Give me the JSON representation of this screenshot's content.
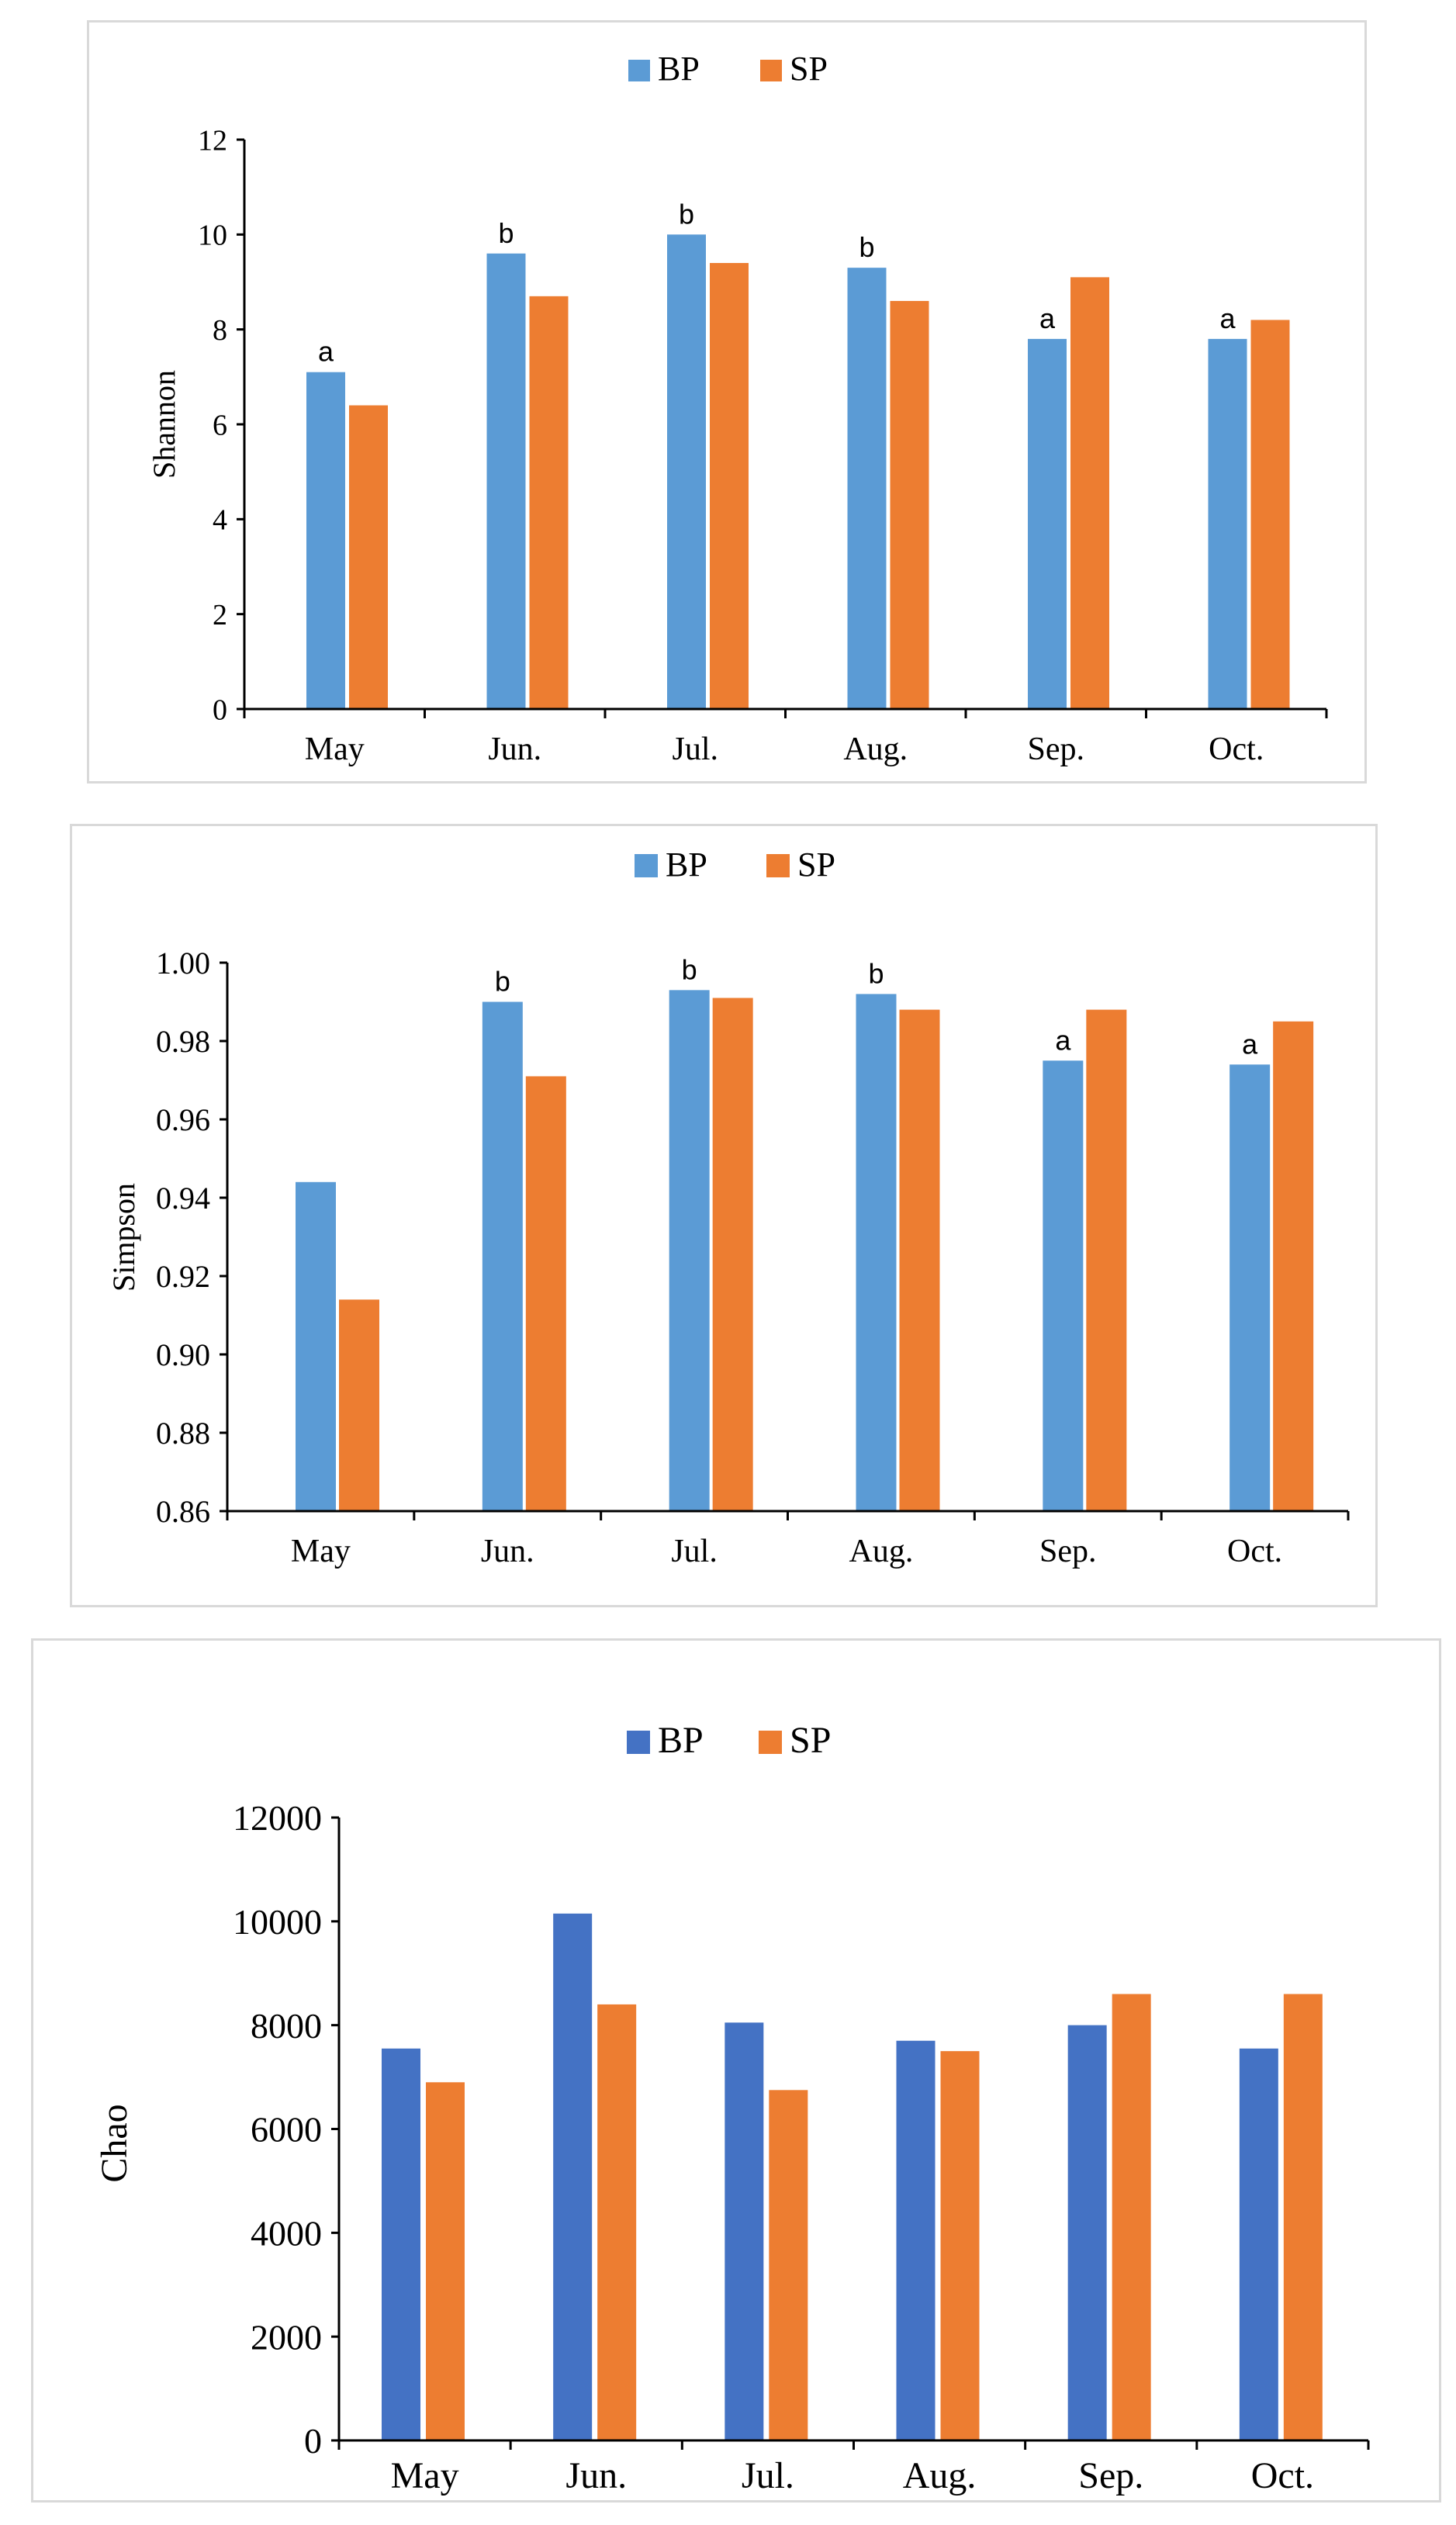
{
  "colors": {
    "bp": "#5b9bd5",
    "sp": "#ed7d31",
    "bp_chao": "#4472c4",
    "axis": "#000000",
    "panel_border": "#d9d9d9"
  },
  "chart_data": [
    {
      "type": "bar",
      "title": "",
      "xlabel": "",
      "ylabel": "Shannon",
      "ylim": [
        0,
        12
      ],
      "yticks": [
        0,
        2,
        4,
        6,
        8,
        10,
        12
      ],
      "ytick_labels": [
        "0",
        "2",
        "4",
        "6",
        "8",
        "10",
        "12"
      ],
      "grid": false,
      "legend": "top-center",
      "categories": [
        "May",
        "Jun.",
        "Jul.",
        "Aug.",
        "Sep.",
        "Oct."
      ],
      "series": [
        {
          "name": "BP",
          "values": [
            7.1,
            9.6,
            10.0,
            9.3,
            7.8,
            7.8
          ]
        },
        {
          "name": "SP",
          "values": [
            6.4,
            8.7,
            9.4,
            8.6,
            9.1,
            8.2
          ]
        }
      ],
      "annotations": [
        "a",
        "b",
        "b",
        "b",
        "a",
        "a"
      ]
    },
    {
      "type": "bar",
      "title": "",
      "xlabel": "",
      "ylabel": "Simpson",
      "ylim": [
        0.86,
        1.0
      ],
      "yticks": [
        0.86,
        0.88,
        0.9,
        0.92,
        0.94,
        0.96,
        0.98,
        1.0
      ],
      "ytick_labels": [
        "0.86",
        "0.88",
        "0.90",
        "0.92",
        "0.94",
        "0.96",
        "0.98",
        "1.00"
      ],
      "grid": false,
      "legend": "top-center",
      "categories": [
        "May",
        "Jun.",
        "Jul.",
        "Aug.",
        "Sep.",
        "Oct."
      ],
      "series": [
        {
          "name": "BP",
          "values": [
            0.944,
            0.99,
            0.993,
            0.992,
            0.975,
            0.974
          ]
        },
        {
          "name": "SP",
          "values": [
            0.914,
            0.971,
            0.991,
            0.988,
            0.988,
            0.985
          ]
        }
      ],
      "annotations": [
        "",
        "b",
        "b",
        "b",
        "a",
        "a"
      ]
    },
    {
      "type": "bar",
      "title": "",
      "xlabel": "",
      "ylabel": "Chao",
      "ylim": [
        0,
        12000
      ],
      "yticks": [
        0,
        2000,
        4000,
        6000,
        8000,
        10000,
        12000
      ],
      "ytick_labels": [
        "0",
        "2000",
        "4000",
        "6000",
        "8000",
        "10000",
        "12000"
      ],
      "grid": false,
      "legend": "top-center",
      "categories": [
        "May",
        "Jun.",
        "Jul.",
        "Aug.",
        "Sep.",
        "Oct."
      ],
      "series": [
        {
          "name": "BP",
          "values": [
            7550,
            10150,
            8050,
            7700,
            8000,
            7550
          ]
        },
        {
          "name": "SP",
          "values": [
            6900,
            8400,
            6750,
            7500,
            8600,
            8600
          ]
        }
      ],
      "annotations": [
        "",
        "",
        "",
        "",
        "",
        ""
      ]
    }
  ]
}
